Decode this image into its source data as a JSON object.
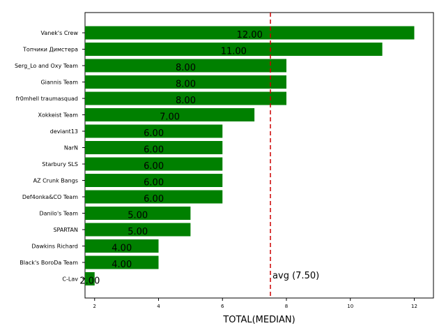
{
  "chart_data": {
    "type": "bar",
    "orientation": "horizontal",
    "categories": [
      "Vanek's Crew",
      "Топчики Димстера",
      "Serg_Lo and Oxy Team",
      "Giannis Team",
      "fr0mhell traumasquad",
      "Xokkeist Team",
      "deviant13",
      "NarN",
      "Starbury SLS",
      "AZ Crunk Bangs",
      "Def4onka&CO Team",
      "Danilo's Team",
      "SPARTAN",
      "Dawkins Richard",
      "Black's BoroDa Team",
      "C-Lav"
    ],
    "values": [
      12,
      11,
      8,
      8,
      8,
      7,
      6,
      6,
      6,
      6,
      6,
      5,
      5,
      4,
      4,
      2
    ],
    "value_labels": [
      "12.00",
      "11.00",
      "8.00",
      "8.00",
      "8.00",
      "7.00",
      "6.00",
      "6.00",
      "6.00",
      "6.00",
      "6.00",
      "5.00",
      "5.00",
      "4.00",
      "4.00",
      "2.00"
    ],
    "xlabel": "TOTAL(MEDIAN)",
    "ylabel": "",
    "xlim": [
      1.7,
      12.6
    ],
    "xticks": [
      2,
      4,
      6,
      8,
      10,
      12
    ],
    "bar_color": "#008000",
    "reference_line": {
      "value": 7.5,
      "label": "avg (7.50)",
      "color": "#cc0000",
      "style": "dashed"
    },
    "grid": false
  }
}
